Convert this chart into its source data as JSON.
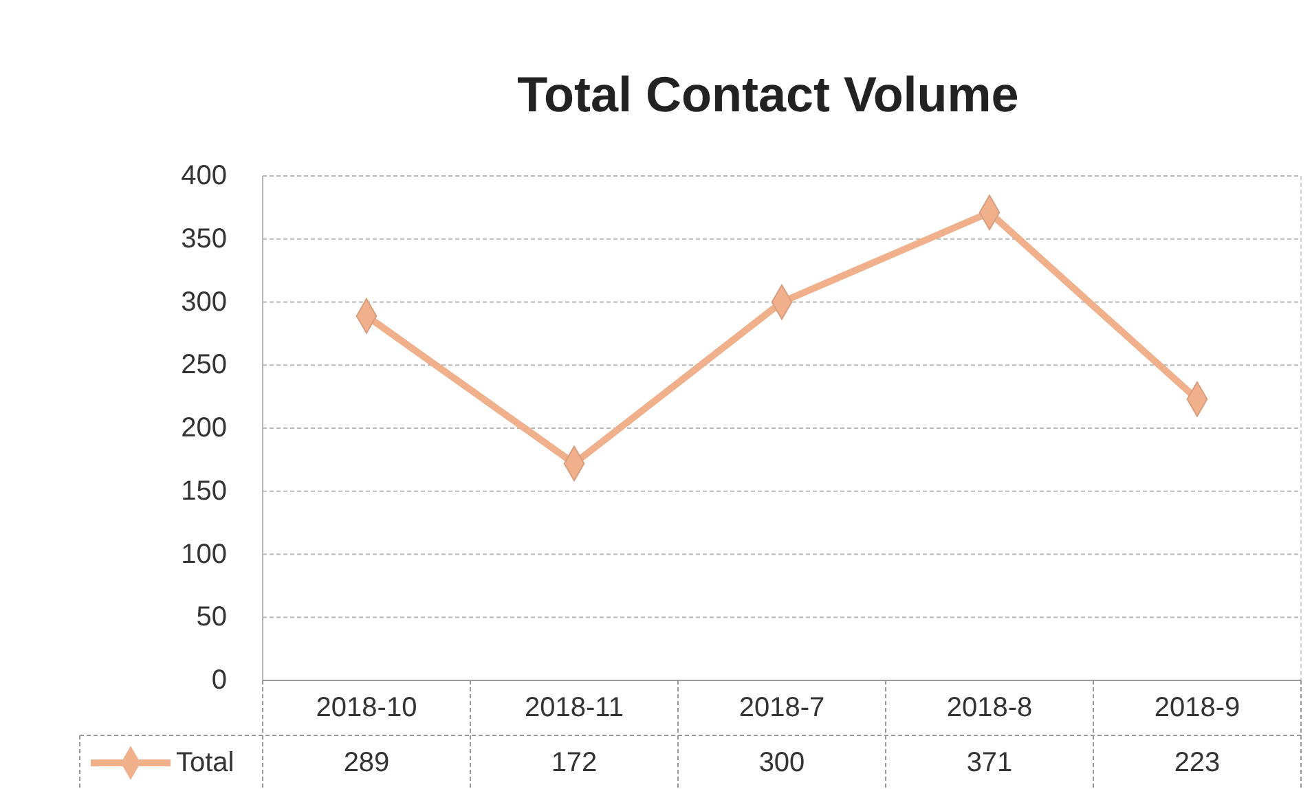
{
  "chart_data": {
    "type": "line",
    "title": "Total Contact Volume",
    "categories": [
      "2018-10",
      "2018-11",
      "2018-7",
      "2018-8",
      "2018-9"
    ],
    "series": [
      {
        "name": "Total",
        "color": "#f0b08c",
        "values": [
          289,
          172,
          300,
          371,
          223
        ]
      }
    ],
    "ylim": [
      0,
      400
    ],
    "yticks": [
      0,
      50,
      100,
      150,
      200,
      250,
      300,
      350,
      400
    ],
    "grid": "y",
    "marker": "diamond",
    "line_style": "solid",
    "data_labels": true,
    "legend": "bottom"
  }
}
